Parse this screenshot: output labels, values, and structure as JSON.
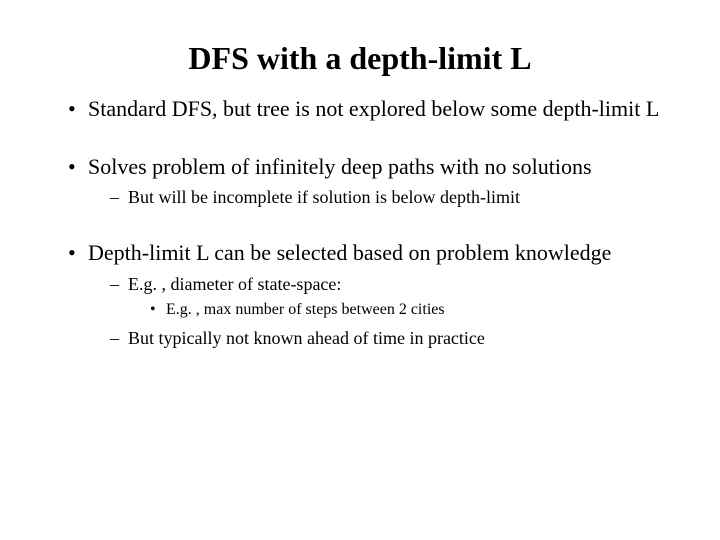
{
  "slide": {
    "title": "DFS with a depth-limit L",
    "background_color": "#ffffff",
    "text_color": "#000000",
    "title_fontsize": 32,
    "bullets": [
      {
        "text": "Standard DFS, but tree is not explored below some depth-limit L",
        "fontsize": 22,
        "children": []
      },
      {
        "text": "Solves problem of infinitely deep paths with no solutions",
        "fontsize": 22,
        "children": [
          {
            "text": "But will be incomplete if solution is below depth-limit",
            "fontsize": 18,
            "children": []
          }
        ]
      },
      {
        "text": "Depth-limit L can be selected based on problem knowledge",
        "fontsize": 22,
        "children": [
          {
            "text": "E.g. , diameter of state-space:",
            "fontsize": 18,
            "children": [
              {
                "text": "E.g. , max number of steps between 2 cities",
                "fontsize": 16
              }
            ]
          },
          {
            "text": "But typically not known ahead of time in practice",
            "fontsize": 18,
            "children": []
          }
        ]
      }
    ]
  }
}
